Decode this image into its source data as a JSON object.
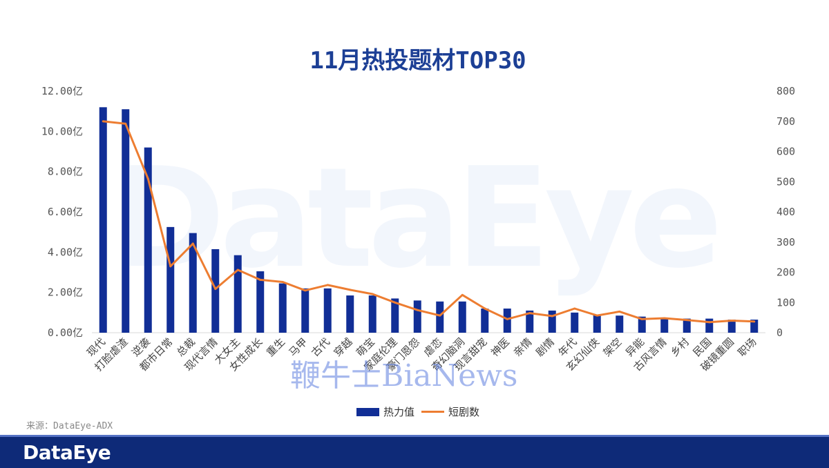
{
  "chart_data": {
    "type": "bar",
    "title": "11月热投题材TOP30",
    "categories": [
      "现代",
      "打脸虐渣",
      "逆袭",
      "都市日常",
      "总裁",
      "现代言情",
      "大女主",
      "女性成长",
      "重生",
      "马甲",
      "古代",
      "穿越",
      "萌宝",
      "家庭伦理",
      "豪门恩怨",
      "虐恋",
      "奇幻脑洞",
      "现言甜宠",
      "神医",
      "亲情",
      "剧情",
      "年代",
      "玄幻仙侠",
      "架空",
      "异能",
      "古风言情",
      "乡村",
      "民国",
      "破镜重圆",
      "职场"
    ],
    "series": [
      {
        "name": "热力值",
        "type": "bar",
        "axis": "left",
        "color": "#112e96",
        "values": [
          11.2,
          11.1,
          9.2,
          5.25,
          4.95,
          4.15,
          3.85,
          3.05,
          2.45,
          2.2,
          2.2,
          1.85,
          1.85,
          1.7,
          1.6,
          1.55,
          1.55,
          1.2,
          1.2,
          1.1,
          1.1,
          1.0,
          0.9,
          0.85,
          0.8,
          0.75,
          0.7,
          0.7,
          0.65,
          0.65
        ]
      },
      {
        "name": "短剧数",
        "type": "line",
        "axis": "right",
        "color": "#ed7d31",
        "values": [
          700,
          692,
          510,
          220,
          295,
          145,
          208,
          175,
          168,
          140,
          158,
          142,
          128,
          100,
          75,
          57,
          125,
          80,
          45,
          65,
          55,
          80,
          57,
          70,
          45,
          48,
          42,
          35,
          40,
          37
        ]
      }
    ],
    "y_left": {
      "min": 0,
      "max": 12,
      "ticks": [
        "0.00亿",
        "2.00亿",
        "4.00亿",
        "6.00亿",
        "8.00亿",
        "10.00亿",
        "12.00亿"
      ]
    },
    "y_right": {
      "min": 0,
      "max": 800,
      "ticks": [
        "0",
        "100",
        "200",
        "300",
        "400",
        "500",
        "600",
        "700",
        "800"
      ]
    },
    "legend_position": "bottom",
    "grid": false
  },
  "source": "来源：DataEye-ADX",
  "footer": {
    "logo": "DataEye"
  },
  "watermark": "DataEye",
  "overlay_text": "鞭牛士BiaNews"
}
